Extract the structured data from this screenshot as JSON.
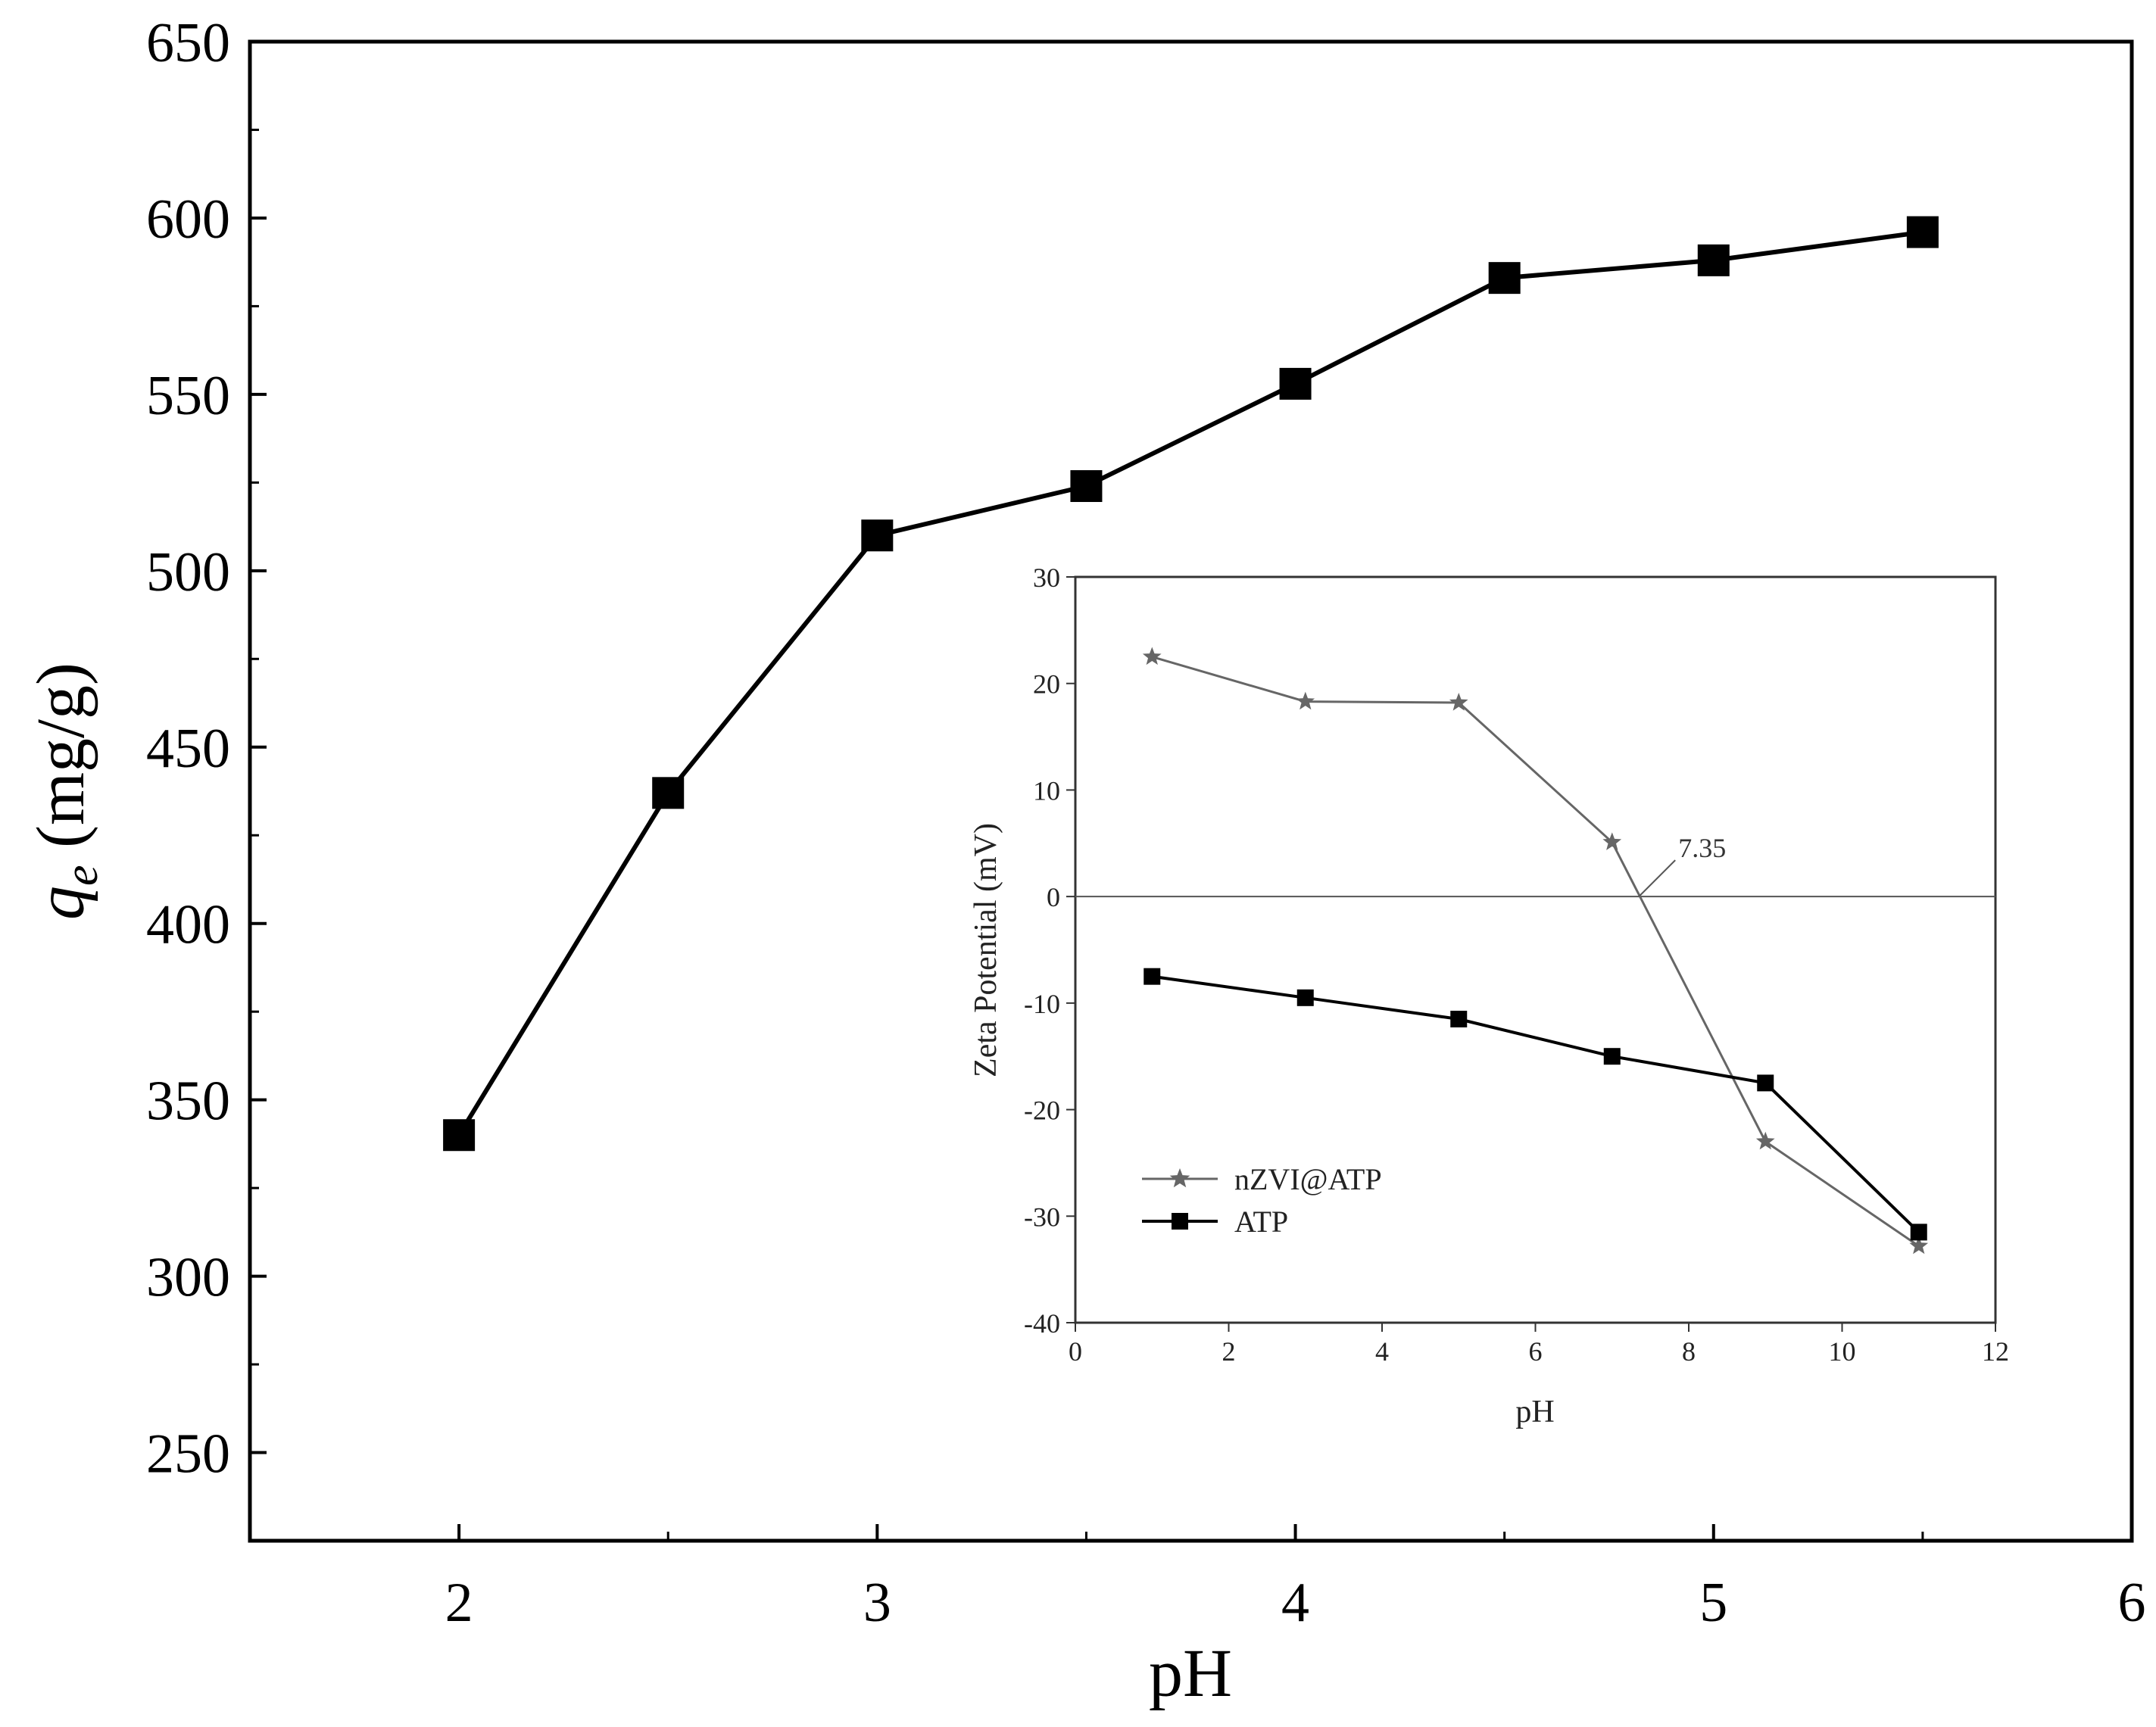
{
  "chart_data": [
    {
      "type": "line",
      "xlabel": "pH",
      "ylabel": "q",
      "ylabel_subscript": "e",
      "ylabel_unit": " (mg/g)",
      "xlim": [
        1.5,
        6
      ],
      "ylim": [
        225,
        650
      ],
      "xticks": [
        2,
        3,
        4,
        5,
        6
      ],
      "yticks": [
        250,
        300,
        350,
        400,
        450,
        500,
        550,
        600,
        650
      ],
      "series": [
        {
          "marker": "square",
          "color": "#000000",
          "x": [
            2,
            2.5,
            3,
            3.5,
            4,
            4.5,
            5,
            5.5
          ],
          "y": [
            340,
            437,
            510,
            524,
            553,
            583,
            588,
            596
          ]
        }
      ]
    },
    {
      "type": "line",
      "xlabel": "pH",
      "ylabel": "Zeta Potential (mV)",
      "xlim": [
        0,
        12
      ],
      "ylim": [
        -40,
        30
      ],
      "xticks": [
        0,
        2,
        4,
        6,
        8,
        10,
        12
      ],
      "yticks": [
        -40,
        -30,
        -20,
        -10,
        0,
        10,
        20,
        30
      ],
      "zero_line": true,
      "annotation": {
        "text": "7.35",
        "x": 7.35,
        "y": 0
      },
      "legend_position": "bottom-left",
      "series": [
        {
          "name": "nZVI@ATP",
          "marker": "star",
          "color": "#666666",
          "x": [
            1,
            3,
            5,
            7,
            9,
            11
          ],
          "y": [
            22.5,
            18.3,
            18.2,
            5.1,
            -23,
            -32.8
          ]
        },
        {
          "name": "ATP",
          "marker": "square",
          "color": "#000000",
          "x": [
            1,
            3,
            5,
            7,
            9,
            11
          ],
          "y": [
            -7.5,
            -9.5,
            -11.5,
            -15,
            -17.5,
            -31.5
          ]
        }
      ]
    }
  ]
}
